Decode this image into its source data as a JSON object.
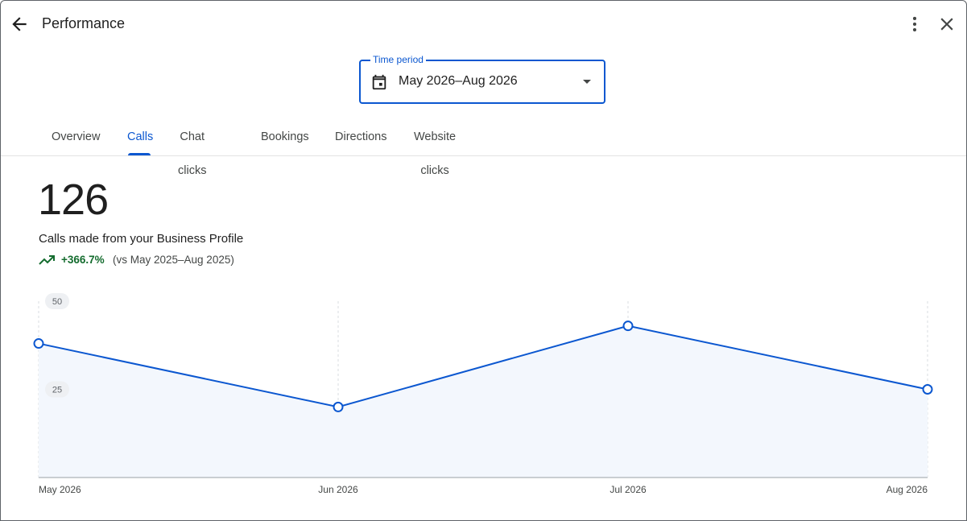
{
  "header": {
    "title": "Performance",
    "back_icon": "arrow-back-icon",
    "more_icon": "more-vert-icon",
    "close_icon": "close-icon"
  },
  "time_period": {
    "label": "Time period",
    "value": "May 2026–Aug 2026",
    "icon": "calendar-icon"
  },
  "tabs": [
    {
      "label": "Overview"
    },
    {
      "label": "Calls",
      "active": true
    },
    {
      "label": "Chat clicks"
    },
    {
      "label": "Bookings"
    },
    {
      "label": "Directions"
    },
    {
      "label": "Website clicks"
    }
  ],
  "metric": {
    "value": "126",
    "description": "Calls made from your Business Profile",
    "change": "+366.7%",
    "comparison": "(vs May 2025–Aug 2025)"
  },
  "colors": {
    "accent": "#0b57d0",
    "positive": "#146c2e",
    "area_fill": "#f3f7fd"
  },
  "chart_data": {
    "type": "area",
    "categories": [
      "May 2026",
      "Jun 2026",
      "Jul 2026",
      "Aug 2026"
    ],
    "series": [
      {
        "values": [
          38,
          20,
          43,
          25
        ]
      }
    ],
    "yticks": [
      "25",
      "50"
    ],
    "ylim": [
      0,
      50
    ],
    "grid": "vertical-dashed"
  }
}
